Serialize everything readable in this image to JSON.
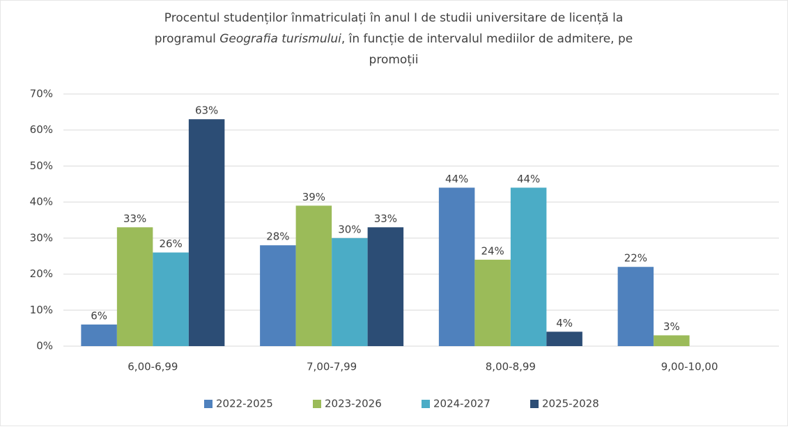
{
  "chart_data": {
    "type": "bar",
    "title_lines": [
      [
        {
          "text": "Procentul studenților înmatriculați în anul I de studii universitare de licență la"
        }
      ],
      [
        {
          "text": "programul "
        },
        {
          "text": "Geografia turismului",
          "italic": true
        },
        {
          "text": ", în funcție de intervalul mediilor de admitere, pe"
        }
      ],
      [
        {
          "text": "promoții"
        }
      ]
    ],
    "categories": [
      "6,00-6,99",
      "7,00-7,99",
      "8,00-8,99",
      "9,00-10,00"
    ],
    "series": [
      {
        "name": "2022-2025",
        "color": "#4f81bd",
        "values": [
          6,
          28,
          44,
          22
        ],
        "value_labels": [
          "6%",
          "28%",
          "44%",
          "22%"
        ]
      },
      {
        "name": "2023-2026",
        "color": "#9bbb59",
        "values": [
          33,
          39,
          24,
          3
        ],
        "value_labels": [
          "33%",
          "39%",
          "24%",
          "3%"
        ]
      },
      {
        "name": "2024-2027",
        "color": "#4bacc6",
        "values": [
          26,
          30,
          44,
          null
        ],
        "value_labels": [
          "26%",
          "30%",
          "44%",
          null
        ]
      },
      {
        "name": "2025-2028",
        "color": "#2c4d75",
        "values": [
          63,
          33,
          4,
          null
        ],
        "value_labels": [
          "63%",
          "33%",
          "4%",
          null
        ]
      }
    ],
    "ylim": [
      0,
      70
    ],
    "yticks": [
      {
        "value": 0,
        "label": "0%"
      },
      {
        "value": 10,
        "label": "10%"
      },
      {
        "value": 20,
        "label": "20%"
      },
      {
        "value": 30,
        "label": "30%"
      },
      {
        "value": 40,
        "label": "40%"
      },
      {
        "value": 50,
        "label": "50%"
      },
      {
        "value": 60,
        "label": "60%"
      },
      {
        "value": 70,
        "label": "70%"
      }
    ],
    "grid": true,
    "legend": "bottom"
  }
}
